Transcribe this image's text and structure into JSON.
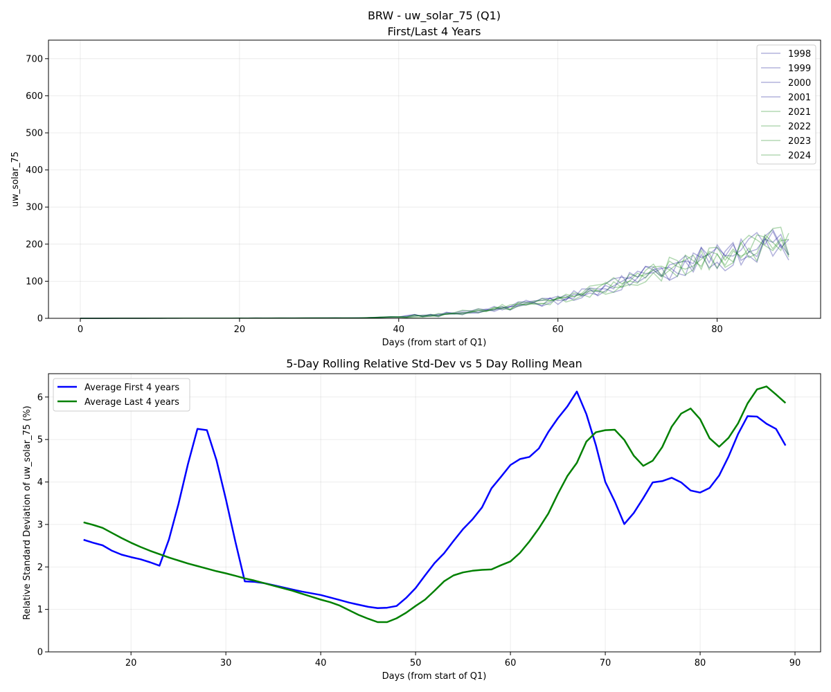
{
  "chart_data": [
    {
      "type": "line",
      "title": "BRW - uw_solar_75 (Q1)",
      "subtitle": "First/Last 4 Years",
      "xlabel": "Days (from start of Q1)",
      "ylabel": "uw_solar_75",
      "xlim": [
        -4,
        93
      ],
      "ylim": [
        0,
        750
      ],
      "xticks": [
        0,
        20,
        40,
        60,
        80
      ],
      "yticks": [
        0,
        100,
        200,
        300,
        400,
        500,
        600,
        700
      ],
      "grid": true,
      "legend_position": "top-right",
      "legend": [
        "1998",
        "1999",
        "2000",
        "2001",
        "2021",
        "2022",
        "2023",
        "2024"
      ],
      "colors": {
        "first": "#00008b",
        "last": "#008000"
      },
      "series": [
        {
          "name": "1998",
          "group": "first",
          "seed": 11
        },
        {
          "name": "1999",
          "group": "first",
          "seed": 23
        },
        {
          "name": "2000",
          "group": "first",
          "seed": 37
        },
        {
          "name": "2001",
          "group": "first",
          "seed": 41
        },
        {
          "name": "2021",
          "group": "last",
          "seed": 53
        },
        {
          "name": "2022",
          "group": "last",
          "seed": 67
        },
        {
          "name": "2023",
          "group": "last",
          "seed": 71
        },
        {
          "name": "2024",
          "group": "last",
          "seed": 89
        }
      ],
      "approx_envelope": {
        "x": [
          0,
          35,
          40,
          45,
          50,
          55,
          60,
          65,
          70,
          75,
          80,
          85,
          89
        ],
        "y": [
          0,
          1,
          4,
          10,
          20,
          35,
          50,
          75,
          110,
          140,
          165,
          190,
          205
        ]
      }
    },
    {
      "type": "line",
      "title": "5-Day Rolling Relative Std-Dev vs 5 Day Rolling Mean",
      "xlabel": "Days (from start of Q1)",
      "ylabel": "Relative Standard Deviation of uw_solar_75 (%)",
      "xlim": [
        11.3,
        92.7
      ],
      "ylim": [
        0,
        6.55
      ],
      "xticks": [
        20,
        30,
        40,
        50,
        60,
        70,
        80,
        90
      ],
      "yticks": [
        0,
        1,
        2,
        3,
        4,
        5,
        6
      ],
      "grid": true,
      "legend_position": "top-left",
      "series": [
        {
          "name": "Average First 4 years",
          "color": "#0000ff",
          "x": [
            15,
            16,
            17,
            18,
            19,
            20,
            21,
            22,
            23,
            24,
            25,
            26,
            27,
            28,
            29,
            30,
            31,
            32,
            33,
            34,
            35,
            36,
            37,
            38,
            39,
            40,
            41,
            42,
            43,
            44,
            45,
            46,
            47,
            48,
            49,
            50,
            51,
            52,
            53,
            54,
            55,
            56,
            57,
            58,
            59,
            60,
            61,
            62,
            63,
            64,
            65,
            66,
            67,
            68,
            69,
            70,
            71,
            72,
            73,
            74,
            75,
            76,
            77,
            78,
            79,
            80,
            81,
            82,
            83,
            84,
            85,
            86,
            87,
            88,
            89
          ],
          "values": [
            2.64,
            2.57,
            2.51,
            2.38,
            2.29,
            2.23,
            2.18,
            2.11,
            2.03,
            2.65,
            3.48,
            4.42,
            5.25,
            5.22,
            4.52,
            3.6,
            2.6,
            1.66,
            1.65,
            1.62,
            1.57,
            1.52,
            1.47,
            1.42,
            1.38,
            1.34,
            1.28,
            1.22,
            1.16,
            1.11,
            1.06,
            1.03,
            1.04,
            1.08,
            1.27,
            1.5,
            1.8,
            2.09,
            2.32,
            2.61,
            2.89,
            3.12,
            3.4,
            3.85,
            4.12,
            4.4,
            4.54,
            4.59,
            4.79,
            5.18,
            5.5,
            5.78,
            6.13,
            5.6,
            4.87,
            4.0,
            3.54,
            3.01,
            3.27,
            3.62,
            3.99,
            4.02,
            4.1,
            3.99,
            3.8,
            3.75,
            3.86,
            4.15,
            4.6,
            5.13,
            5.55,
            5.54,
            5.37,
            5.25,
            4.86
          ]
        },
        {
          "name": "Average Last 4 years",
          "color": "#008000",
          "x": [
            15,
            16,
            17,
            18,
            19,
            20,
            21,
            22,
            23,
            24,
            25,
            26,
            27,
            28,
            29,
            30,
            31,
            32,
            33,
            34,
            35,
            36,
            37,
            38,
            39,
            40,
            41,
            42,
            43,
            44,
            45,
            46,
            47,
            48,
            49,
            50,
            51,
            52,
            53,
            54,
            55,
            56,
            57,
            58,
            59,
            60,
            61,
            62,
            63,
            64,
            65,
            66,
            67,
            68,
            69,
            70,
            71,
            72,
            73,
            74,
            75,
            76,
            77,
            78,
            79,
            80,
            81,
            82,
            83,
            84,
            85,
            86,
            87,
            88,
            89
          ],
          "values": [
            3.05,
            2.99,
            2.92,
            2.8,
            2.68,
            2.57,
            2.47,
            2.38,
            2.3,
            2.22,
            2.15,
            2.08,
            2.02,
            1.96,
            1.9,
            1.85,
            1.79,
            1.73,
            1.68,
            1.62,
            1.56,
            1.5,
            1.44,
            1.37,
            1.3,
            1.23,
            1.17,
            1.09,
            0.98,
            0.87,
            0.78,
            0.7,
            0.7,
            0.79,
            0.92,
            1.08,
            1.23,
            1.44,
            1.66,
            1.8,
            1.87,
            1.91,
            1.93,
            1.94,
            2.04,
            2.13,
            2.33,
            2.6,
            2.91,
            3.26,
            3.72,
            4.14,
            4.45,
            4.95,
            5.17,
            5.22,
            5.23,
            4.99,
            4.62,
            4.38,
            4.5,
            4.82,
            5.3,
            5.61,
            5.73,
            5.48,
            5.03,
            4.83,
            5.04,
            5.38,
            5.85,
            6.18,
            6.25,
            6.06,
            5.86
          ]
        }
      ]
    }
  ]
}
